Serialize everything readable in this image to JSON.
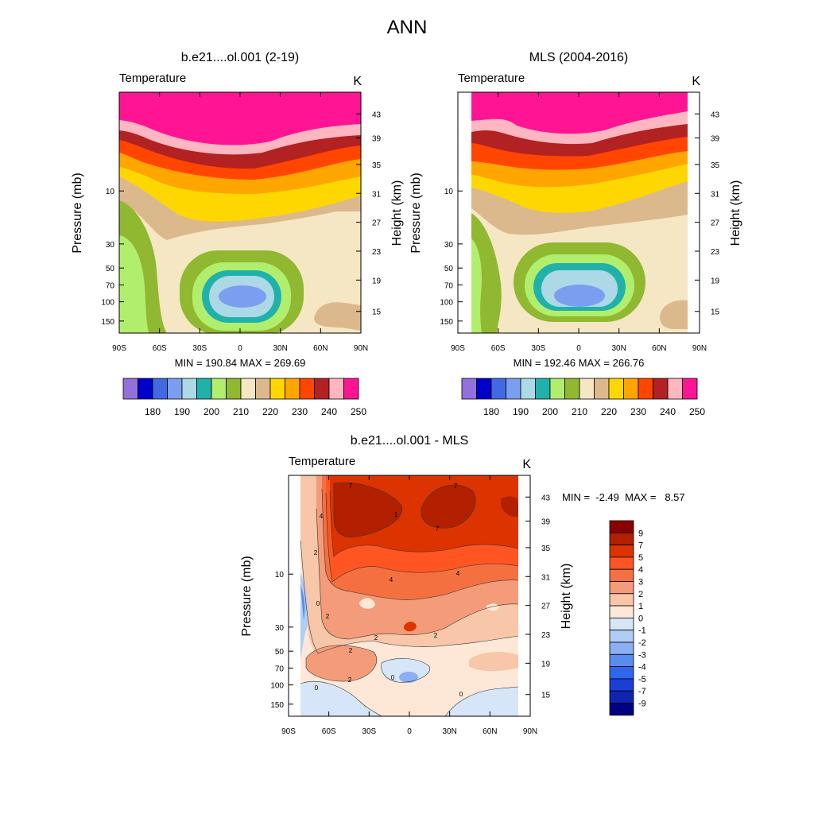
{
  "figure": {
    "title": "ANN"
  },
  "chart_data": [
    {
      "type": "heatmap",
      "panel": "model",
      "title": "b.e21....ol.001 (2-19)",
      "subtitle_left": "Temperature",
      "subtitle_right": "K",
      "xlabel": "",
      "ylabel": "Pressure (mb)",
      "ylabel_right": "Height (km)",
      "x_ticks": [
        "90S",
        "60S",
        "30S",
        "0",
        "30N",
        "60N",
        "90N"
      ],
      "y_ticks": [
        "10",
        "30",
        "50",
        "70",
        "100",
        "150"
      ],
      "y_right_ticks": [
        "43",
        "39",
        "35",
        "31",
        "27",
        "23",
        "19",
        "15"
      ],
      "stats": "MIN = 190.84  MAX = 269.69",
      "colorbar": {
        "labels": [
          "180",
          "190",
          "200",
          "210",
          "220",
          "230",
          "240",
          "250"
        ],
        "colors": [
          "#9370db",
          "#0000cd",
          "#4169e1",
          "#7b9ef0",
          "#add8e6",
          "#20b2aa",
          "#b2ee6e",
          "#90b830",
          "#f5e6c4",
          "#dcb98c",
          "#ffd700",
          "#ffa500",
          "#ff4500",
          "#b22222",
          "#ffb6c1",
          "#ff1493"
        ]
      }
    },
    {
      "type": "heatmap",
      "panel": "obs",
      "title": "MLS (2004-2016)",
      "subtitle_left": "Temperature",
      "subtitle_right": "K",
      "xlabel": "",
      "ylabel": "Pressure (mb)",
      "ylabel_right": "Height (km)",
      "x_ticks": [
        "90S",
        "60S",
        "30S",
        "0",
        "30N",
        "60N",
        "90N"
      ],
      "y_ticks": [
        "10",
        "30",
        "50",
        "70",
        "100",
        "150"
      ],
      "y_right_ticks": [
        "43",
        "39",
        "35",
        "31",
        "27",
        "23",
        "19",
        "15"
      ],
      "stats": "MIN = 192.46  MAX = 266.76",
      "colorbar": {
        "labels": [
          "180",
          "190",
          "200",
          "210",
          "220",
          "230",
          "240",
          "250"
        ],
        "colors": [
          "#9370db",
          "#0000cd",
          "#4169e1",
          "#7b9ef0",
          "#add8e6",
          "#20b2aa",
          "#b2ee6e",
          "#90b830",
          "#f5e6c4",
          "#dcb98c",
          "#ffd700",
          "#ffa500",
          "#ff4500",
          "#b22222",
          "#ffb6c1",
          "#ff1493"
        ]
      }
    },
    {
      "type": "heatmap",
      "panel": "diff",
      "title": "b.e21....ol.001 - MLS",
      "subtitle_left": "Temperature",
      "subtitle_right": "K",
      "xlabel": "",
      "ylabel": "Pressure (mb)",
      "ylabel_right": "Height (km)",
      "x_ticks": [
        "90S",
        "60S",
        "30S",
        "0",
        "30N",
        "60N",
        "90N"
      ],
      "y_ticks": [
        "10",
        "30",
        "50",
        "70",
        "100",
        "150"
      ],
      "y_right_ticks": [
        "43",
        "39",
        "35",
        "31",
        "27",
        "23",
        "19",
        "15"
      ],
      "stats": "MIN =  -2.49  MAX =   8.57",
      "contour_labels": [
        "7",
        "7",
        "7",
        "4",
        "4",
        "4",
        "2",
        "2",
        "2",
        "2",
        "2",
        "2",
        "0",
        "0",
        "0",
        "0",
        "1"
      ],
      "colorbar": {
        "labels": [
          "9",
          "7",
          "5",
          "4",
          "3",
          "2",
          "1",
          "0",
          "-1",
          "-2",
          "-3",
          "-4",
          "-5",
          "-7",
          "-9"
        ],
        "colors": [
          "#8b0000",
          "#b22000",
          "#dd3300",
          "#ff5522",
          "#f57040",
          "#f49b7a",
          "#f8c6a8",
          "#fde8d8",
          "#d6e6f8",
          "#b0cdf5",
          "#8aaff2",
          "#5a8cf0",
          "#2f66ee",
          "#1a3fd6",
          "#0f25b0",
          "#000080"
        ]
      }
    }
  ]
}
